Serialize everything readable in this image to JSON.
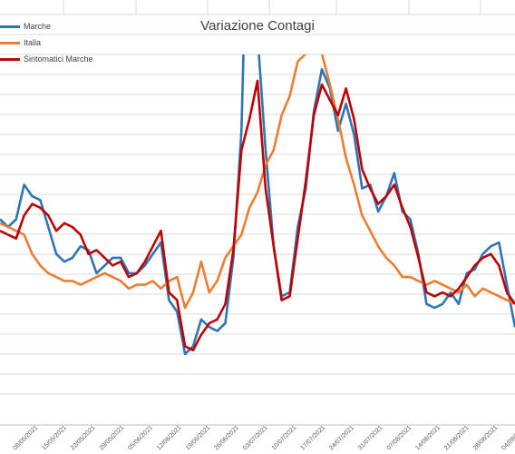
{
  "chart_data": {
    "type": "line",
    "title": "Variazione Contagi",
    "xlabel": "",
    "ylabel": "",
    "grid": true,
    "legend_position": "top-left",
    "x_tick_labels": [
      "08/05/2021",
      "15/05/2021",
      "22/05/2021",
      "29/05/2021",
      "05/06/2021",
      "12/06/2021",
      "19/06/2021",
      "26/06/2021",
      "03/07/2021",
      "10/07/2021",
      "17/07/2021",
      "24/07/2021",
      "31/07/2021",
      "07/08/2021",
      "14/08/2021",
      "21/08/2021",
      "28/08/2021",
      "04/09/2021"
    ],
    "ylim": [
      0,
      100
    ],
    "series": [
      {
        "name": "Marche",
        "color": "#2e75b6",
        "x": [
          0,
          2,
          4,
          6,
          8,
          10,
          12,
          14,
          16,
          18,
          20,
          22,
          24,
          26,
          28,
          30,
          32,
          34,
          36,
          38,
          40,
          42,
          44,
          46,
          48,
          50,
          52,
          54,
          56,
          58,
          60,
          62,
          64,
          66,
          68,
          70,
          72,
          74,
          76,
          78,
          80,
          82,
          84,
          86,
          88,
          90,
          92,
          94,
          96,
          98,
          100,
          102,
          104,
          106,
          108,
          110,
          112,
          114,
          116,
          118,
          120,
          122,
          124,
          126,
          128
        ],
        "values": [
          52,
          50,
          52,
          61,
          58,
          57,
          50,
          43,
          41,
          42,
          45,
          44,
          38,
          40,
          42,
          42,
          38,
          38,
          40,
          43,
          46,
          31,
          28,
          17,
          19,
          26,
          24,
          23,
          25,
          42,
          75,
          155,
          100,
          70,
          45,
          32,
          33,
          50,
          60,
          80,
          91,
          86,
          75,
          82,
          74,
          60,
          61,
          54,
          58,
          64,
          54,
          52,
          43,
          30,
          29,
          30,
          33,
          30,
          38,
          39,
          43,
          45,
          46,
          35,
          24
        ]
      },
      {
        "name": "Italia",
        "color": "#ed7d31",
        "x": [
          0,
          2,
          4,
          6,
          8,
          10,
          12,
          14,
          16,
          18,
          20,
          22,
          24,
          26,
          28,
          30,
          32,
          34,
          36,
          38,
          40,
          42,
          44,
          46,
          48,
          50,
          52,
          54,
          56,
          58,
          60,
          62,
          64,
          66,
          68,
          70,
          72,
          74,
          76,
          78,
          80,
          82,
          84,
          86,
          88,
          90,
          92,
          94,
          96,
          98,
          100,
          102,
          104,
          106,
          108,
          110,
          112,
          114,
          116,
          118,
          120,
          122,
          124,
          126,
          128
        ],
        "values": [
          51,
          50,
          49,
          48,
          43,
          40,
          38,
          37,
          36,
          36,
          35,
          36,
          37,
          38,
          37,
          36,
          34,
          35,
          35,
          36,
          34,
          36,
          37,
          29,
          33,
          41,
          33,
          36,
          42,
          45,
          48,
          55,
          59,
          66,
          70,
          79,
          84,
          93,
          95,
          99,
          95,
          87,
          78,
          68,
          61,
          53,
          49,
          45,
          42,
          40,
          37,
          37,
          36,
          35,
          36,
          35,
          34,
          33,
          35,
          32,
          34,
          33,
          32,
          31,
          30
        ]
      },
      {
        "name": "Sintomatici Marche",
        "color": "#c00000",
        "x": [
          0,
          2,
          4,
          6,
          8,
          10,
          12,
          14,
          16,
          18,
          20,
          22,
          24,
          26,
          28,
          30,
          32,
          34,
          36,
          38,
          40,
          42,
          44,
          46,
          48,
          50,
          52,
          54,
          56,
          58,
          60,
          62,
          64,
          66,
          68,
          70,
          72,
          74,
          76,
          78,
          80,
          82,
          84,
          86,
          88,
          90,
          92,
          94,
          96,
          98,
          100,
          102,
          104,
          106,
          108,
          110,
          112,
          114,
          116,
          118,
          120,
          122,
          124,
          126,
          128
        ],
        "values": [
          49,
          48,
          47,
          53,
          56,
          55,
          53,
          49,
          51,
          50,
          48,
          43,
          44,
          42,
          40,
          41,
          37,
          38,
          41,
          45,
          49,
          33,
          31,
          19,
          18,
          22,
          25,
          26,
          30,
          44,
          70,
          78,
          88,
          60,
          45,
          31,
          32,
          47,
          62,
          79,
          87,
          83,
          79,
          86,
          78,
          65,
          60,
          56,
          58,
          61,
          55,
          50,
          42,
          33,
          32,
          33,
          32,
          34,
          37,
          40,
          42,
          43,
          40,
          33,
          30
        ]
      }
    ]
  }
}
